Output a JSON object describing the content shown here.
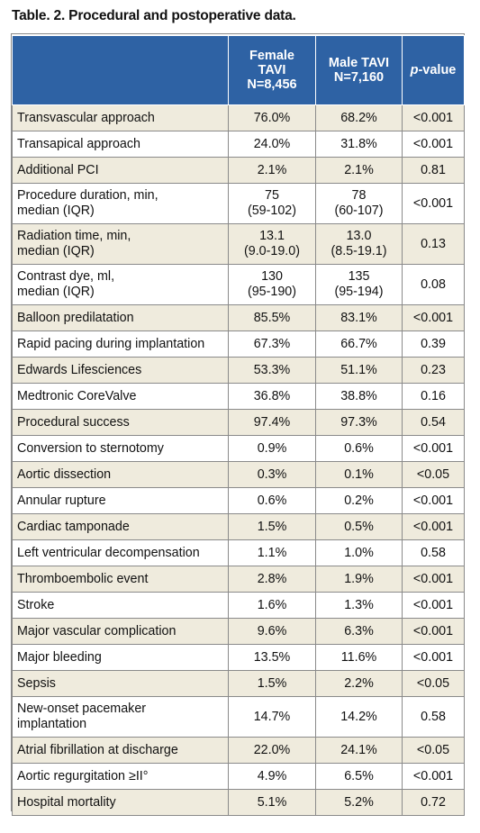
{
  "title": "Table. 2. Procedural and postoperative data.",
  "header": {
    "female": [
      "Female",
      "TAVI",
      "N=8,456"
    ],
    "male": [
      "Male TAVI",
      "N=7,160"
    ],
    "pvalue_italic": "p",
    "pvalue_rest": "-value"
  },
  "rows": [
    {
      "label": [
        "Transvascular approach"
      ],
      "female": [
        "76.0%"
      ],
      "male": [
        "68.2%"
      ],
      "p": "<0.001"
    },
    {
      "label": [
        "Transapical approach"
      ],
      "female": [
        "24.0%"
      ],
      "male": [
        "31.8%"
      ],
      "p": "<0.001"
    },
    {
      "label": [
        "Additional PCI"
      ],
      "female": [
        "2.1%"
      ],
      "male": [
        "2.1%"
      ],
      "p": "0.81"
    },
    {
      "label": [
        "Procedure duration, min,",
        "median (IQR)"
      ],
      "female": [
        "75",
        "(59-102)"
      ],
      "male": [
        "78",
        "(60-107)"
      ],
      "p": "<0.001"
    },
    {
      "label": [
        "Radiation time, min,",
        "median (IQR)"
      ],
      "female": [
        "13.1",
        "(9.0-19.0)"
      ],
      "male": [
        "13.0",
        "(8.5-19.1)"
      ],
      "p": "0.13"
    },
    {
      "label": [
        "Contrast dye, ml,",
        "median (IQR)"
      ],
      "female": [
        "130",
        "(95-190)"
      ],
      "male": [
        "135",
        "(95-194)"
      ],
      "p": "0.08"
    },
    {
      "label": [
        "Balloon predilatation"
      ],
      "female": [
        "85.5%"
      ],
      "male": [
        "83.1%"
      ],
      "p": "<0.001"
    },
    {
      "label": [
        "Rapid pacing during implantation"
      ],
      "female": [
        "67.3%"
      ],
      "male": [
        "66.7%"
      ],
      "p": "0.39"
    },
    {
      "label": [
        "Edwards Lifesciences"
      ],
      "female": [
        "53.3%"
      ],
      "male": [
        "51.1%"
      ],
      "p": "0.23"
    },
    {
      "label": [
        "Medtronic CoreValve"
      ],
      "female": [
        "36.8%"
      ],
      "male": [
        "38.8%"
      ],
      "p": "0.16"
    },
    {
      "label": [
        "Procedural success"
      ],
      "female": [
        "97.4%"
      ],
      "male": [
        "97.3%"
      ],
      "p": "0.54"
    },
    {
      "label": [
        "Conversion to sternotomy"
      ],
      "female": [
        "0.9%"
      ],
      "male": [
        "0.6%"
      ],
      "p": "<0.001"
    },
    {
      "label": [
        "Aortic dissection"
      ],
      "female": [
        "0.3%"
      ],
      "male": [
        "0.1%"
      ],
      "p": "<0.05"
    },
    {
      "label": [
        "Annular rupture"
      ],
      "female": [
        "0.6%"
      ],
      "male": [
        "0.2%"
      ],
      "p": "<0.001"
    },
    {
      "label": [
        "Cardiac tamponade"
      ],
      "female": [
        "1.5%"
      ],
      "male": [
        "0.5%"
      ],
      "p": "<0.001"
    },
    {
      "label": [
        "Left ventricular decompensation"
      ],
      "female": [
        "1.1%"
      ],
      "male": [
        "1.0%"
      ],
      "p": "0.58"
    },
    {
      "label": [
        "Thromboembolic event"
      ],
      "female": [
        "2.8%"
      ],
      "male": [
        "1.9%"
      ],
      "p": "<0.001"
    },
    {
      "label": [
        "Stroke"
      ],
      "female": [
        "1.6%"
      ],
      "male": [
        "1.3%"
      ],
      "p": "<0.001"
    },
    {
      "label": [
        "Major vascular complication"
      ],
      "female": [
        "9.6%"
      ],
      "male": [
        "6.3%"
      ],
      "p": "<0.001"
    },
    {
      "label": [
        "Major bleeding"
      ],
      "female": [
        "13.5%"
      ],
      "male": [
        "11.6%"
      ],
      "p": "<0.001"
    },
    {
      "label": [
        "Sepsis"
      ],
      "female": [
        "1.5%"
      ],
      "male": [
        "2.2%"
      ],
      "p": "<0.05"
    },
    {
      "label": [
        "New-onset pacemaker",
        "implantation"
      ],
      "female": [
        "14.7%"
      ],
      "male": [
        "14.2%"
      ],
      "p": "0.58"
    },
    {
      "label": [
        "Atrial fibrillation at discharge"
      ],
      "female": [
        "22.0%"
      ],
      "male": [
        "24.1%"
      ],
      "p": "<0.05"
    },
    {
      "label": [
        "Aortic regurgitation ≥II°"
      ],
      "female": [
        "4.9%"
      ],
      "male": [
        "6.5%"
      ],
      "p": "<0.001"
    },
    {
      "label": [
        "Hospital mortality"
      ],
      "female": [
        "5.1%"
      ],
      "male": [
        "5.2%"
      ],
      "p": "0.72"
    }
  ],
  "colors": {
    "header_bg": "#2e62a4",
    "stripe_bg": "#efebdd",
    "border": "#8a8a8a"
  }
}
